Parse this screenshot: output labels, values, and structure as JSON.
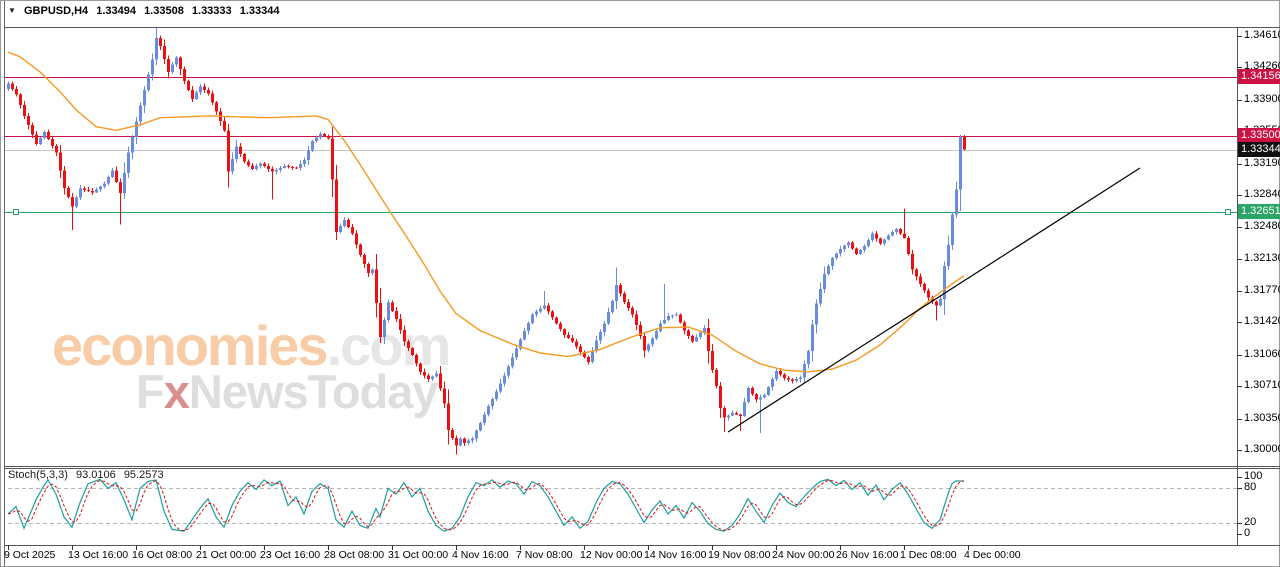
{
  "window": {
    "symbol": "GBPUSD,H4",
    "open": "1.33494",
    "high": "1.33508",
    "low": "1.33333",
    "close": "1.33344"
  },
  "indicator": {
    "label": "Stoch(5,3,3)",
    "k_value": "93.0106",
    "d_value": "95.2573"
  },
  "watermark": {
    "brand": "economies",
    "brand_suffix": ".com",
    "line2_f": "F",
    "line2_x": "x",
    "line2_rest": "NewsToday"
  },
  "colors": {
    "candle_up": "#6a8ce0",
    "candle_down": "#ee1010",
    "ma_line": "#f59a23",
    "level_red": "#cc1245",
    "level_green": "#2ba567",
    "current_price_line": "#c4c4c4",
    "current_price_badge": "#111111",
    "stoch_k": "#1d9e9e",
    "stoch_d": "#dd1111",
    "stoch_level": "#b5b5b5",
    "trendline": "#000000",
    "frame": "#666666"
  },
  "chart_data": {
    "type": "candlestick",
    "symbol": "GBPUSD",
    "timeframe": "H4",
    "title": "GBPUSD,H4  1.33494 1.33508 1.33333 1.33344",
    "current_ohlc": {
      "open": 1.33494,
      "high": 1.33508,
      "low": 1.33333,
      "close": 1.33344
    },
    "y_axis": {
      "max": 1.3461,
      "min": 1.3,
      "ticks": [
        "1.34610",
        "1.34260",
        "1.33900",
        "1.33550",
        "1.33190",
        "1.32840",
        "1.32480",
        "1.32130",
        "1.31770",
        "1.31420",
        "1.31060",
        "1.30710",
        "1.30350",
        "1.30000"
      ]
    },
    "x_axis": {
      "labels": [
        {
          "bar": 0,
          "label": "9 Oct 2025"
        },
        {
          "bar": 16,
          "label": "13 Oct 16:00"
        },
        {
          "bar": 32,
          "label": "16 Oct 08:00"
        },
        {
          "bar": 48,
          "label": "21 Oct 00:00"
        },
        {
          "bar": 64,
          "label": "23 Oct 16:00"
        },
        {
          "bar": 80,
          "label": "28 Oct 08:00"
        },
        {
          "bar": 96,
          "label": "31 Oct 00:00"
        },
        {
          "bar": 112,
          "label": "4 Nov 16:00"
        },
        {
          "bar": 128,
          "label": "7 Nov 08:00"
        },
        {
          "bar": 144,
          "label": "12 Nov 00:00"
        },
        {
          "bar": 160,
          "label": "14 Nov 16:00"
        },
        {
          "bar": 176,
          "label": "19 Nov 08:00"
        },
        {
          "bar": 192,
          "label": "24 Nov 00:00"
        },
        {
          "bar": 208,
          "label": "26 Nov 16:00"
        },
        {
          "bar": 224,
          "label": "1 Dec 08:00"
        },
        {
          "bar": 240,
          "label": "4 Dec 00:00"
        }
      ]
    },
    "levels": [
      {
        "price": 1.34156,
        "label": "1.34156",
        "color": "#cc1245",
        "badge_bg": "#cc1245",
        "role": "resistance"
      },
      {
        "price": 1.335,
        "label": "1.33500",
        "color": "#cc1245",
        "badge_bg": "#cc1245",
        "role": "resistance"
      },
      {
        "price": 1.33344,
        "label": "1.33344",
        "color": "#c4c4c4",
        "badge_bg": "#111111",
        "role": "current-price"
      },
      {
        "price": 1.32651,
        "label": "1.32651",
        "color": "#2ba567",
        "badge_bg": "#2ba567",
        "role": "support",
        "handles": true
      }
    ],
    "trendline": {
      "from_bar": 180,
      "from_price": 1.302,
      "to_bar": 283,
      "to_price": 1.3314
    },
    "close_path": [
      [
        0,
        1.3408
      ],
      [
        2,
        1.3396
      ],
      [
        4,
        1.3372
      ],
      [
        7,
        1.3341
      ],
      [
        9,
        1.3354
      ],
      [
        12,
        1.3331
      ],
      [
        14,
        1.3292
      ],
      [
        16,
        1.3271
      ],
      [
        18,
        1.3291
      ],
      [
        21,
        1.3287
      ],
      [
        24,
        1.3297
      ],
      [
        26,
        1.3311
      ],
      [
        28,
        1.3286
      ],
      [
        30,
        1.3331
      ],
      [
        32,
        1.3366
      ],
      [
        34,
        1.3401
      ],
      [
        36,
        1.3435
      ],
      [
        37,
        1.3459
      ],
      [
        38,
        1.345
      ],
      [
        40,
        1.3421
      ],
      [
        42,
        1.3437
      ],
      [
        44,
        1.3411
      ],
      [
        46,
        1.3391
      ],
      [
        48,
        1.3405
      ],
      [
        50,
        1.3397
      ],
      [
        52,
        1.3377
      ],
      [
        54,
        1.3356
      ],
      [
        55,
        1.331
      ],
      [
        57,
        1.3338
      ],
      [
        59,
        1.3321
      ],
      [
        61,
        1.3313
      ],
      [
        63,
        1.3319
      ],
      [
        66,
        1.331
      ],
      [
        69,
        1.3316
      ],
      [
        72,
        1.3314
      ],
      [
        74,
        1.3323
      ],
      [
        76,
        1.3344
      ],
      [
        78,
        1.3352
      ],
      [
        80,
        1.3347
      ],
      [
        81,
        1.3301
      ],
      [
        82,
        1.3243
      ],
      [
        84,
        1.3256
      ],
      [
        86,
        1.3241
      ],
      [
        88,
        1.3217
      ],
      [
        90,
        1.3197
      ],
      [
        91,
        1.3201
      ],
      [
        93,
        1.3126
      ],
      [
        95,
        1.3164
      ],
      [
        97,
        1.3146
      ],
      [
        99,
        1.3121
      ],
      [
        101,
        1.3106
      ],
      [
        103,
        1.3087
      ],
      [
        105,
        1.3079
      ],
      [
        107,
        1.3085
      ],
      [
        109,
        1.3052
      ],
      [
        110,
        1.3022
      ],
      [
        112,
        1.3005
      ],
      [
        113,
        1.3013
      ],
      [
        114,
        1.3008
      ],
      [
        116,
        1.3013
      ],
      [
        118,
        1.303
      ],
      [
        120,
        1.3049
      ],
      [
        122,
        1.3065
      ],
      [
        124,
        1.3083
      ],
      [
        126,
        1.3103
      ],
      [
        128,
        1.3123
      ],
      [
        131,
        1.3151
      ],
      [
        134,
        1.3161
      ],
      [
        137,
        1.3141
      ],
      [
        139,
        1.3128
      ],
      [
        141,
        1.3121
      ],
      [
        143,
        1.3109
      ],
      [
        145,
        1.3098
      ],
      [
        147,
        1.3122
      ],
      [
        149,
        1.3141
      ],
      [
        151,
        1.3166
      ],
      [
        152,
        1.3184
      ],
      [
        154,
        1.3165
      ],
      [
        156,
        1.3151
      ],
      [
        158,
        1.3127
      ],
      [
        159,
        1.3111
      ],
      [
        161,
        1.3124
      ],
      [
        163,
        1.3141
      ],
      [
        165,
        1.3149
      ],
      [
        167,
        1.3151
      ],
      [
        169,
        1.3133
      ],
      [
        171,
        1.3121
      ],
      [
        173,
        1.3131
      ],
      [
        174,
        1.3136
      ],
      [
        175,
        1.311
      ],
      [
        176,
        1.3089
      ],
      [
        177,
        1.3071
      ],
      [
        178,
        1.3047
      ],
      [
        179,
        1.3036
      ],
      [
        181,
        1.3041
      ],
      [
        183,
        1.3038
      ],
      [
        185,
        1.3069
      ],
      [
        187,
        1.3056
      ],
      [
        189,
        1.3061
      ],
      [
        191,
        1.3079
      ],
      [
        192,
        1.3088
      ],
      [
        194,
        1.308
      ],
      [
        196,
        1.3077
      ],
      [
        198,
        1.3081
      ],
      [
        199,
        1.3096
      ],
      [
        200,
        1.311
      ],
      [
        201,
        1.314
      ],
      [
        202,
        1.3163
      ],
      [
        204,
        1.3196
      ],
      [
        206,
        1.3214
      ],
      [
        208,
        1.3224
      ],
      [
        210,
        1.3231
      ],
      [
        212,
        1.3218
      ],
      [
        214,
        1.3227
      ],
      [
        216,
        1.3241
      ],
      [
        218,
        1.323
      ],
      [
        220,
        1.3239
      ],
      [
        222,
        1.3246
      ],
      [
        224,
        1.3236
      ],
      [
        226,
        1.3201
      ],
      [
        228,
        1.3185
      ],
      [
        230,
        1.317
      ],
      [
        232,
        1.3161
      ],
      [
        233,
        1.3168
      ],
      [
        234,
        1.3205
      ],
      [
        235,
        1.3228
      ],
      [
        236,
        1.3262
      ],
      [
        237,
        1.329
      ],
      [
        238,
        1.3349
      ],
      [
        239,
        1.33344
      ]
    ],
    "wick_overrides": {
      "16": {
        "l": 1.3245
      },
      "28": {
        "l": 1.3251
      },
      "37": {
        "h": 1.347
      },
      "66": {
        "l": 1.3279
      },
      "82": {
        "l": 1.3234
      },
      "93": {
        "l": 1.3119
      },
      "112": {
        "l": 1.2995
      },
      "134": {
        "h": 1.3177
      },
      "152": {
        "h": 1.3203
      },
      "164": {
        "h": 1.3185
      },
      "179": {
        "l": 1.302
      },
      "183": {
        "l": 1.3021
      },
      "188": {
        "l": 1.3019
      },
      "224": {
        "h": 1.3269
      },
      "232": {
        "l": 1.3144
      },
      "238": {
        "h": 1.3351
      },
      "239": {
        "o": 1.33494,
        "h": 1.33508,
        "l": 1.33333
      }
    },
    "ma_path": [
      [
        0,
        1.3443
      ],
      [
        3,
        1.3438
      ],
      [
        8,
        1.3421
      ],
      [
        13,
        1.3399
      ],
      [
        17,
        1.3379
      ],
      [
        22,
        1.336
      ],
      [
        27,
        1.3356
      ],
      [
        33,
        1.3362
      ],
      [
        38,
        1.337
      ],
      [
        50,
        1.3372
      ],
      [
        65,
        1.337
      ],
      [
        77,
        1.3372
      ],
      [
        80,
        1.3368
      ],
      [
        84,
        1.3345
      ],
      [
        88,
        1.3318
      ],
      [
        92,
        1.329
      ],
      [
        96,
        1.3262
      ],
      [
        100,
        1.3235
      ],
      [
        104,
        1.3207
      ],
      [
        108,
        1.3177
      ],
      [
        112,
        1.3152
      ],
      [
        118,
        1.3133
      ],
      [
        126,
        1.3118
      ],
      [
        133,
        1.3108
      ],
      [
        140,
        1.3104
      ],
      [
        148,
        1.3112
      ],
      [
        156,
        1.3126
      ],
      [
        163,
        1.3136
      ],
      [
        170,
        1.3137
      ],
      [
        176,
        1.3128
      ],
      [
        182,
        1.311
      ],
      [
        188,
        1.3096
      ],
      [
        194,
        1.3089
      ],
      [
        200,
        1.3087
      ],
      [
        206,
        1.309
      ],
      [
        212,
        1.31
      ],
      [
        218,
        1.3117
      ],
      [
        224,
        1.314
      ],
      [
        228,
        1.3158
      ],
      [
        232,
        1.3172
      ],
      [
        236,
        1.3185
      ],
      [
        239,
        1.3194
      ]
    ],
    "stochastic": {
      "name": "Stoch(5,3,3)",
      "k_current": 93.0106,
      "d_current": 95.2573,
      "levels": [
        80,
        20
      ],
      "scale_labels": [
        "100",
        "80",
        "20",
        "0"
      ],
      "k_path": [
        [
          0,
          35
        ],
        [
          2,
          48
        ],
        [
          4,
          10
        ],
        [
          7,
          60
        ],
        [
          9,
          85
        ],
        [
          10,
          95
        ],
        [
          12,
          70
        ],
        [
          14,
          30
        ],
        [
          16,
          12
        ],
        [
          18,
          55
        ],
        [
          20,
          88
        ],
        [
          23,
          96
        ],
        [
          25,
          80
        ],
        [
          27,
          90
        ],
        [
          29,
          60
        ],
        [
          31,
          25
        ],
        [
          33,
          80
        ],
        [
          35,
          92
        ],
        [
          37,
          95
        ],
        [
          39,
          40
        ],
        [
          41,
          8
        ],
        [
          44,
          5
        ],
        [
          46,
          25
        ],
        [
          48,
          45
        ],
        [
          50,
          62
        ],
        [
          52,
          30
        ],
        [
          54,
          12
        ],
        [
          56,
          50
        ],
        [
          58,
          75
        ],
        [
          60,
          90
        ],
        [
          62,
          78
        ],
        [
          64,
          95
        ],
        [
          66,
          85
        ],
        [
          68,
          93
        ],
        [
          70,
          50
        ],
        [
          72,
          65
        ],
        [
          74,
          35
        ],
        [
          76,
          75
        ],
        [
          78,
          88
        ],
        [
          80,
          80
        ],
        [
          82,
          25
        ],
        [
          84,
          12
        ],
        [
          86,
          40
        ],
        [
          88,
          15
        ],
        [
          90,
          10
        ],
        [
          92,
          45
        ],
        [
          93,
          30
        ],
        [
          95,
          80
        ],
        [
          97,
          70
        ],
        [
          99,
          90
        ],
        [
          101,
          65
        ],
        [
          103,
          80
        ],
        [
          105,
          40
        ],
        [
          107,
          15
        ],
        [
          109,
          5
        ],
        [
          111,
          10
        ],
        [
          113,
          30
        ],
        [
          115,
          65
        ],
        [
          117,
          90
        ],
        [
          119,
          85
        ],
        [
          121,
          95
        ],
        [
          123,
          82
        ],
        [
          125,
          93
        ],
        [
          127,
          88
        ],
        [
          129,
          70
        ],
        [
          131,
          92
        ],
        [
          133,
          85
        ],
        [
          135,
          65
        ],
        [
          137,
          40
        ],
        [
          139,
          15
        ],
        [
          141,
          30
        ],
        [
          143,
          10
        ],
        [
          145,
          22
        ],
        [
          147,
          55
        ],
        [
          149,
          80
        ],
        [
          151,
          92
        ],
        [
          153,
          88
        ],
        [
          155,
          70
        ],
        [
          157,
          45
        ],
        [
          159,
          20
        ],
        [
          161,
          42
        ],
        [
          163,
          58
        ],
        [
          165,
          35
        ],
        [
          167,
          50
        ],
        [
          169,
          28
        ],
        [
          171,
          55
        ],
        [
          173,
          40
        ],
        [
          175,
          18
        ],
        [
          177,
          8
        ],
        [
          179,
          5
        ],
        [
          181,
          15
        ],
        [
          183,
          35
        ],
        [
          185,
          62
        ],
        [
          187,
          40
        ],
        [
          189,
          20
        ],
        [
          191,
          50
        ],
        [
          193,
          72
        ],
        [
          195,
          55
        ],
        [
          197,
          48
        ],
        [
          199,
          65
        ],
        [
          201,
          80
        ],
        [
          203,
          92
        ],
        [
          205,
          96
        ],
        [
          207,
          85
        ],
        [
          209,
          94
        ],
        [
          211,
          78
        ],
        [
          213,
          90
        ],
        [
          215,
          68
        ],
        [
          217,
          86
        ],
        [
          219,
          60
        ],
        [
          221,
          78
        ],
        [
          223,
          90
        ],
        [
          225,
          70
        ],
        [
          227,
          45
        ],
        [
          229,
          20
        ],
        [
          231,
          10
        ],
        [
          233,
          25
        ],
        [
          235,
          70
        ],
        [
          236,
          88
        ],
        [
          237,
          93
        ],
        [
          239,
          93
        ]
      ]
    }
  }
}
